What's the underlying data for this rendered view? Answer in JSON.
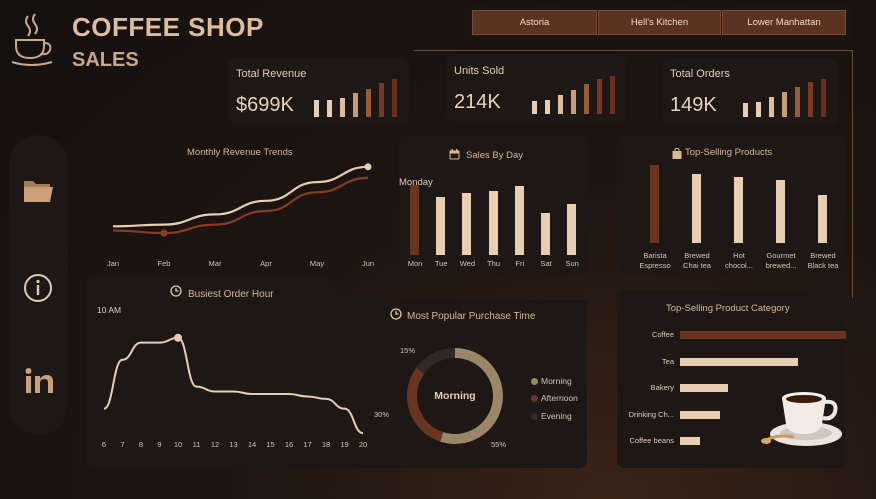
{
  "header": {
    "title": "COFFEE SHOP",
    "subtitle": "SALES"
  },
  "filters": [
    {
      "label": "Astoria"
    },
    {
      "label": "Hell's Kitchen"
    },
    {
      "label": "Lower Manhattan"
    }
  ],
  "kpis": [
    {
      "title": "Total Revenue",
      "value": "$699K",
      "spark": [
        0.45,
        0.45,
        0.5,
        0.62,
        0.75,
        0.9,
        1.0
      ]
    },
    {
      "title": "Units Sold",
      "value": "214K",
      "spark": [
        0.35,
        0.38,
        0.5,
        0.62,
        0.8,
        0.92,
        1.0
      ]
    },
    {
      "title": "Total Orders",
      "value": "149K",
      "spark": [
        0.38,
        0.4,
        0.52,
        0.65,
        0.8,
        0.93,
        1.0
      ]
    }
  ],
  "colors": {
    "accent": "#e8cdb0",
    "dark_brown": "#5a2d1e",
    "mid_brown": "#8a4a2c",
    "panel": "#1d1715",
    "bar_light": "#e8cdb0"
  },
  "sidebar": {
    "icons": [
      "folder-icon",
      "info-icon",
      "linkedin-icon"
    ]
  },
  "chart_data": [
    {
      "type": "line",
      "title": "Monthly Revenue Trends",
      "categories": [
        "Jan",
        "Feb",
        "Mar",
        "Apr",
        "May",
        "Jun"
      ],
      "series": [
        {
          "values": [
            82,
            84,
            96,
            112,
            134,
            152
          ]
        },
        {
          "values": [
            77,
            74,
            84,
            100,
            122,
            139
          ]
        }
      ],
      "ylim": [
        60,
        160
      ]
    },
    {
      "type": "bar",
      "title": "Sales By Day",
      "highlight_label": "Monday",
      "categories": [
        "Mon",
        "Tue",
        "Wed",
        "Thu",
        "Fri",
        "Sat",
        "Sun"
      ],
      "values": [
        101,
        83,
        89,
        92,
        99,
        60,
        73
      ],
      "highlight_index": 0
    },
    {
      "type": "bar",
      "title": "Top-Selling Products",
      "categories": [
        "Barista Espresso",
        "Brewed Chai tea",
        "Hot chocol...",
        "Gourmet brewed...",
        "Brewed Black tea"
      ],
      "values": [
        91,
        80,
        77,
        74,
        56
      ],
      "highlight_index": 0
    },
    {
      "type": "line",
      "title": "Busiest Order Hour",
      "peak_label": "10 AM",
      "categories": [
        "6",
        "7",
        "8",
        "9",
        "10",
        "11",
        "12",
        "13",
        "14",
        "15",
        "16",
        "17",
        "18",
        "19",
        "20"
      ],
      "values": [
        12,
        32,
        39,
        39,
        41,
        21,
        19,
        19,
        18,
        18,
        18,
        17,
        16,
        12,
        2
      ],
      "peak_index": 4
    },
    {
      "type": "pie",
      "title": "Most Popular Purchase Time",
      "center_label": "Morning",
      "slices": [
        {
          "label": "Morning",
          "value": 55,
          "display": "55%",
          "color": "#9b8668"
        },
        {
          "label": "Afternoon",
          "value": 30,
          "display": "30%",
          "color": "#6a3520"
        },
        {
          "label": "Evening",
          "value": 15,
          "display": "15%",
          "color": "#2e2826"
        }
      ]
    },
    {
      "type": "bar",
      "orientation": "horizontal",
      "title": "Top-Selling Product Category",
      "categories": [
        "Coffee",
        "Tea",
        "Bakery",
        "Drinking Ch...",
        "Coffee beans"
      ],
      "values": [
        100,
        71,
        29,
        24,
        12
      ],
      "highlight_index": 0
    }
  ]
}
